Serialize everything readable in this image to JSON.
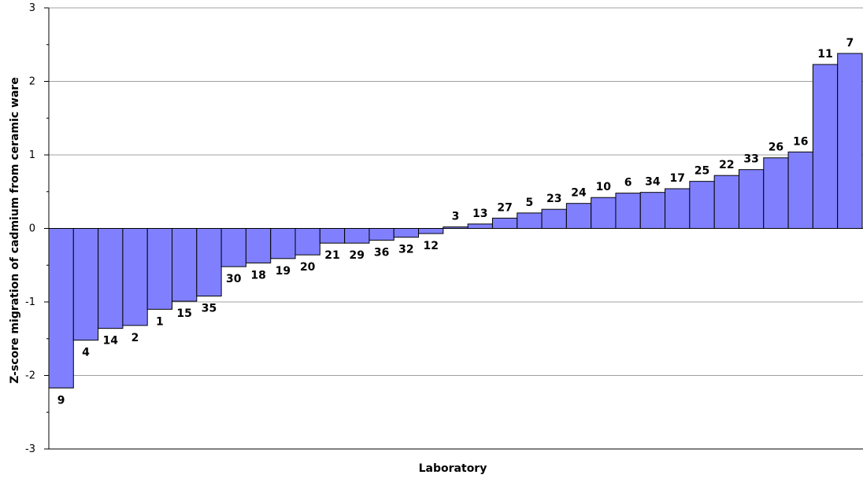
{
  "chart_data": {
    "type": "bar",
    "title": "",
    "xlabel": "Laboratory",
    "ylabel": "Z-score migration of cadmium from ceramic ware",
    "ylim": [
      -3,
      3
    ],
    "yticks": [
      "3",
      "2",
      "1",
      "0",
      "-1",
      "-2",
      "-3"
    ],
    "grid": true,
    "legend": "none",
    "categories": [
      "9",
      "4",
      "14",
      "2",
      "1",
      "15",
      "35",
      "30",
      "18",
      "19",
      "20",
      "21",
      "29",
      "36",
      "32",
      "12",
      "3",
      "13",
      "27",
      "5",
      "23",
      "24",
      "10",
      "6",
      "34",
      "17",
      "25",
      "22",
      "33",
      "26",
      "16",
      "11",
      "7"
    ],
    "values": [
      -2.17,
      -1.52,
      -1.36,
      -1.32,
      -1.1,
      -0.99,
      -0.92,
      -0.52,
      -0.47,
      -0.41,
      -0.36,
      -0.2,
      -0.2,
      -0.16,
      -0.12,
      -0.07,
      0.02,
      0.06,
      0.14,
      0.21,
      0.26,
      0.34,
      0.42,
      0.48,
      0.49,
      0.54,
      0.64,
      0.72,
      0.8,
      0.96,
      1.04,
      2.23,
      2.38
    ],
    "colors": {
      "bar_fill": "#8080ff",
      "bar_stroke": "#000000",
      "grid": "#a0a0a0",
      "axis": "#000000",
      "label_text": "#000000"
    }
  }
}
